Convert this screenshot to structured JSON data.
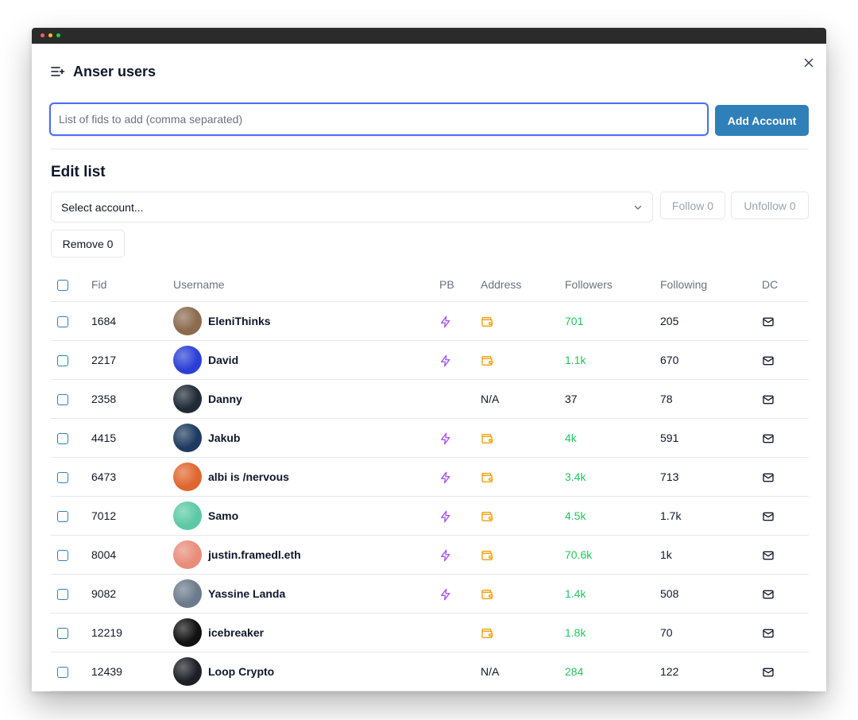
{
  "dialog": {
    "title": "Anser users",
    "title_icon": "list-plus-icon",
    "close_icon": "close-icon"
  },
  "add_form": {
    "placeholder": "List of fids to add (comma separated)",
    "value": "",
    "button_label": "Add Account"
  },
  "edit": {
    "section_title": "Edit list",
    "select_placeholder": "Select account...",
    "follow_label": "Follow 0",
    "unfollow_label": "Unfollow 0",
    "remove_label": "Remove 0"
  },
  "table": {
    "headers": {
      "fid": "Fid",
      "username": "Username",
      "pb": "PB",
      "address": "Address",
      "followers": "Followers",
      "following": "Following",
      "dc": "DC"
    },
    "rows": [
      {
        "fid": "1684",
        "username": "EleniThinks",
        "pb": true,
        "address": "wallet",
        "followers": "701",
        "following": "205",
        "avatar_color": "#8b6a4e"
      },
      {
        "fid": "2217",
        "username": "David",
        "pb": true,
        "address": "wallet",
        "followers": "1.1k",
        "following": "670",
        "avatar_color": "#2b3fd6"
      },
      {
        "fid": "2358",
        "username": "Danny",
        "pb": false,
        "address": "N/A",
        "followers": "37",
        "following": "78",
        "avatar_color": "#1f2a36"
      },
      {
        "fid": "4415",
        "username": "Jakub",
        "pb": true,
        "address": "wallet",
        "followers": "4k",
        "following": "591",
        "avatar_color": "#1e3a5f"
      },
      {
        "fid": "6473",
        "username": "albi is /nervous",
        "pb": true,
        "address": "wallet",
        "followers": "3.4k",
        "following": "713",
        "avatar_color": "#e0662f"
      },
      {
        "fid": "7012",
        "username": "Samo",
        "pb": true,
        "address": "wallet",
        "followers": "4.5k",
        "following": "1.7k",
        "avatar_color": "#5cc9a4"
      },
      {
        "fid": "8004",
        "username": "justin.framedl.eth",
        "pb": true,
        "address": "wallet",
        "followers": "70.6k",
        "following": "1k",
        "avatar_color": "#e98c7a"
      },
      {
        "fid": "9082",
        "username": "Yassine Landa",
        "pb": true,
        "address": "wallet",
        "followers": "1.4k",
        "following": "508",
        "avatar_color": "#6b7b8c"
      },
      {
        "fid": "12219",
        "username": "icebreaker",
        "pb": false,
        "address": "wallet",
        "followers": "1.8k",
        "following": "70",
        "avatar_color": "#111111"
      },
      {
        "fid": "12439",
        "username": "Loop Crypto",
        "pb": false,
        "address": "N/A",
        "followers": "284",
        "following": "122",
        "avatar_color": "#1c1f26"
      }
    ]
  },
  "colors": {
    "accent": "#2f80b8",
    "focus_ring": "#4f6ef7",
    "pb_icon": "#a855f7",
    "wallet_icon": "#f59e0b",
    "followers_green": "#22c55e"
  }
}
